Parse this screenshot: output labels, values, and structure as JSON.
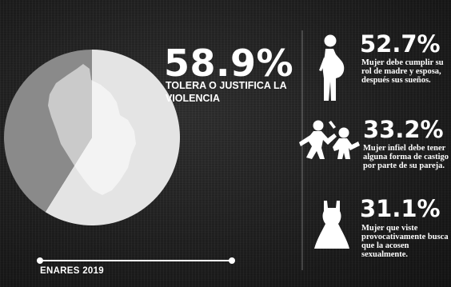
{
  "chart_data": {
    "type": "pie",
    "slices": [
      {
        "value": 58.9,
        "color": "#e4e4e4"
      },
      {
        "value": 41.1,
        "color": "#8a8a8a"
      }
    ]
  },
  "main": {
    "percent": "58.9%",
    "label": "TOLERA O JUSTIFICA LA VIOLENCIA"
  },
  "stats": [
    {
      "percent": "52.7%",
      "text": "Mujer debe cumplir su rol de madre y esposa, después sus sueños.",
      "icon": "pregnant-woman-icon"
    },
    {
      "percent": "33.2%",
      "text": "Mujer infiel debe tener alguna forma de castigo por parte de su pareja.",
      "icon": "domestic-violence-icon"
    },
    {
      "percent": "31.1%",
      "text": "Mujer que viste provocativamente busca que la acosen sexualmente.",
      "icon": "dress-icon"
    }
  ],
  "source": "ENARES 2019",
  "colors": {
    "background": "#202020",
    "text": "#ffffff",
    "pie_light": "#e4e4e4",
    "pie_dark": "#8a8a8a"
  }
}
